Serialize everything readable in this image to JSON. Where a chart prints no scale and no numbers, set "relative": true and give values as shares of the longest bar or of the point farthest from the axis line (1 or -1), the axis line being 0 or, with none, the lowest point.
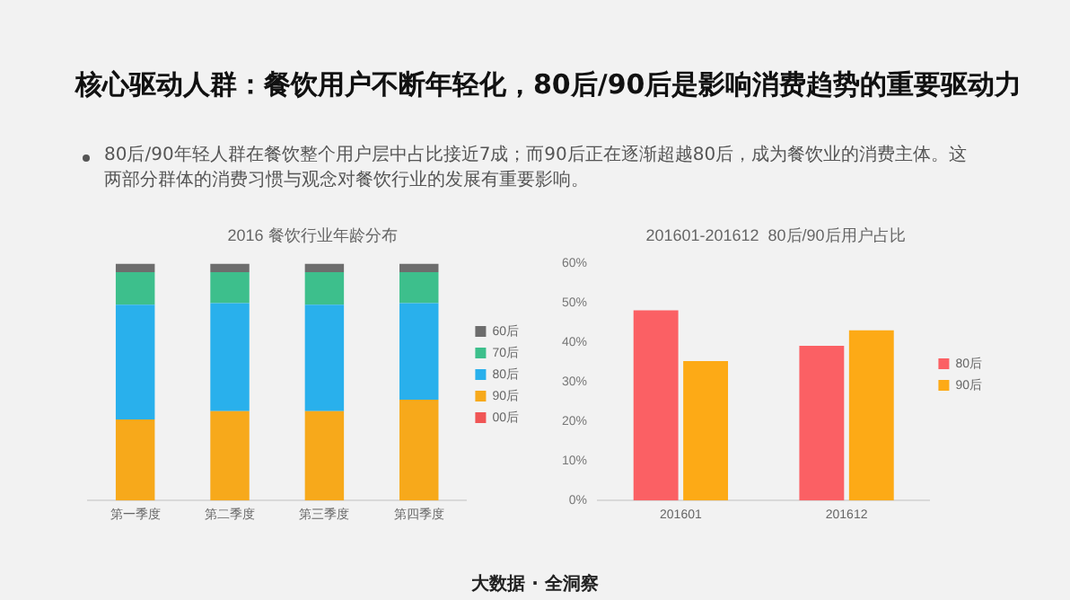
{
  "chart_data": [
    {
      "type": "other",
      "title": "核心驱动人群：餐饮用户不断年轻化，80后/90后是影响消费趋势的重要驱动力",
      "subtitle": "80后/90年轻人群在餐饮整个用户层中占比接近7成；而90后正在逐渐超越80后，成为餐饮业的消费主体。这两部分群体的消费习惯与观念对餐饮行业的发展有重要影响。",
      "annotations": [
        "大数据 · 全洞察"
      ]
    },
    {
      "type": "bar",
      "title": "2016 餐饮行业年龄分布",
      "categories": [
        "第一季度",
        "第二季度",
        "第三季度",
        "第四季度"
      ],
      "stacked": true,
      "relative": true,
      "legend": "right",
      "series": [
        {
          "name": "00后",
          "color": "#f05555",
          "values": [
            0,
            0,
            0,
            0
          ]
        },
        {
          "name": "90后",
          "color": "#f7a91b",
          "values": [
            0.342,
            0.377,
            0.377,
            0.426
          ]
        },
        {
          "name": "80后",
          "color": "#29b0ec",
          "values": [
            0.485,
            0.456,
            0.45,
            0.407
          ]
        },
        {
          "name": "70后",
          "color": "#3dbf8c",
          "values": [
            0.137,
            0.131,
            0.137,
            0.131
          ]
        },
        {
          "name": "60后",
          "color": "#6d6d6d",
          "values": [
            0.036,
            0.036,
            0.036,
            0.036
          ]
        }
      ]
    },
    {
      "type": "bar",
      "title": "201601-201612  80后/90后用户占比",
      "categories": [
        "201601",
        "201612"
      ],
      "ylim": [
        0,
        60
      ],
      "yticks": [
        {
          "value": 0,
          "label": "0%"
        },
        {
          "value": 10,
          "label": "10%"
        },
        {
          "value": 20,
          "label": "20%"
        },
        {
          "value": 30,
          "label": "30%"
        },
        {
          "value": 40,
          "label": "40%"
        },
        {
          "value": 50,
          "label": "50%"
        },
        {
          "value": 60,
          "label": "60%"
        }
      ],
      "legend": "right",
      "series": [
        {
          "name": "80后",
          "color": "#fb6064",
          "values": [
            48.2,
            39.2
          ]
        },
        {
          "name": "90后",
          "color": "#fdaa16",
          "values": [
            35.3,
            43.1
          ]
        }
      ]
    }
  ]
}
